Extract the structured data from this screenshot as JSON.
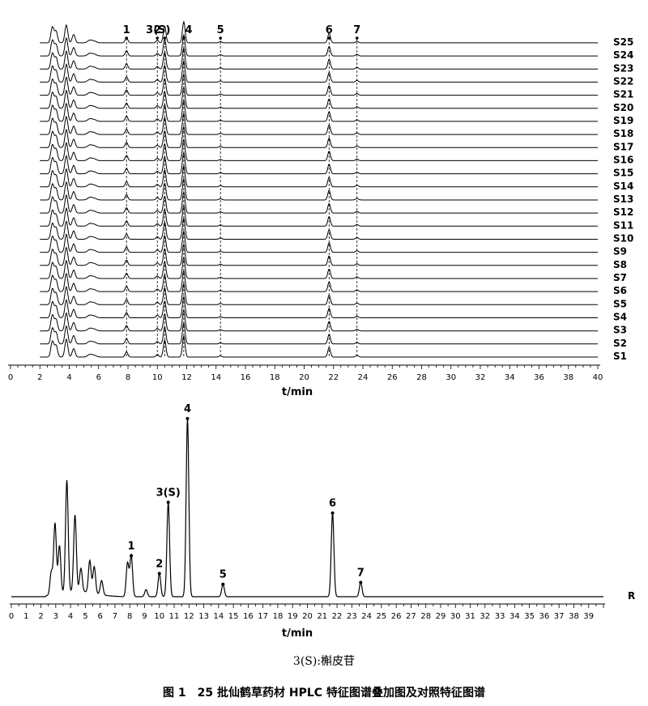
{
  "chart_data": [
    {
      "type": "line",
      "panel": "overlay",
      "xlabel": "t/min",
      "xlim": [
        0,
        40
      ],
      "x_ticks": [
        0,
        2,
        4,
        6,
        8,
        10,
        12,
        14,
        16,
        18,
        20,
        22,
        24,
        26,
        28,
        30,
        32,
        34,
        36,
        38,
        40
      ],
      "grid": false,
      "series_names": [
        "S1",
        "S2",
        "S3",
        "S4",
        "S5",
        "S6",
        "S7",
        "S8",
        "S9",
        "S10",
        "S11",
        "S12",
        "S13",
        "S14",
        "S15",
        "S16",
        "S17",
        "S18",
        "S19",
        "S20",
        "S21",
        "S22",
        "S23",
        "S24",
        "S25"
      ],
      "peak_labels": [
        "1",
        "2",
        "3(S)",
        "4",
        "5",
        "6",
        "7"
      ],
      "peak_times": [
        7.9,
        10.0,
        10.5,
        11.8,
        14.3,
        21.7,
        23.6
      ],
      "early_peaks": [
        {
          "t": 2.85,
          "h": 0.75,
          "w": 0.1
        },
        {
          "t": 3.1,
          "h": 0.55,
          "w": 0.1
        },
        {
          "t": 3.8,
          "h": 0.85,
          "w": 0.1
        },
        {
          "t": 4.3,
          "h": 0.4,
          "w": 0.1
        },
        {
          "t": 5.4,
          "h": 0.12,
          "w": 0.15
        },
        {
          "t": 5.7,
          "h": 0.08,
          "w": 0.15
        }
      ],
      "labeled_peak_heights": [
        0.25,
        0.12,
        0.8,
        1.0,
        0.06,
        0.45,
        0.08
      ]
    },
    {
      "type": "line",
      "panel": "reference",
      "xlabel": "t/min",
      "xlim": [
        0,
        40
      ],
      "x_ticks": [
        0,
        1,
        2,
        3,
        4,
        5,
        6,
        7,
        8,
        9,
        10,
        11,
        12,
        13,
        14,
        15,
        16,
        17,
        18,
        19,
        20,
        21,
        22,
        23,
        24,
        25,
        26,
        27,
        28,
        29,
        30,
        31,
        32,
        33,
        34,
        35,
        36,
        37,
        38,
        39
      ],
      "grid": false,
      "series_name": "R",
      "peaks": [
        {
          "label": "1",
          "t": 8.1,
          "h": 0.23
        },
        {
          "label": "2",
          "t": 10.0,
          "h": 0.13
        },
        {
          "label": "3(S)",
          "t": 10.6,
          "h": 0.53
        },
        {
          "label": "4",
          "t": 11.9,
          "h": 1.0
        },
        {
          "label": "5",
          "t": 14.3,
          "h": 0.07
        },
        {
          "label": "6",
          "t": 21.7,
          "h": 0.47
        },
        {
          "label": "7",
          "t": 23.6,
          "h": 0.08
        }
      ],
      "unlabeled_peaks": [
        {
          "t": 2.7,
          "h": 0.13
        },
        {
          "t": 2.95,
          "h": 0.4
        },
        {
          "t": 3.25,
          "h": 0.27
        },
        {
          "t": 3.75,
          "h": 0.63
        },
        {
          "t": 4.3,
          "h": 0.43
        },
        {
          "t": 4.7,
          "h": 0.13
        },
        {
          "t": 5.3,
          "h": 0.18
        },
        {
          "t": 5.6,
          "h": 0.15
        },
        {
          "t": 6.1,
          "h": 0.08
        },
        {
          "t": 7.85,
          "h": 0.19
        },
        {
          "t": 9.1,
          "h": 0.04
        }
      ]
    }
  ],
  "note": "3(S):槲皮苷",
  "caption": "图 1　25 批仙鹤草药材 HPLC 特征图谱叠加图及对照特征图谱"
}
